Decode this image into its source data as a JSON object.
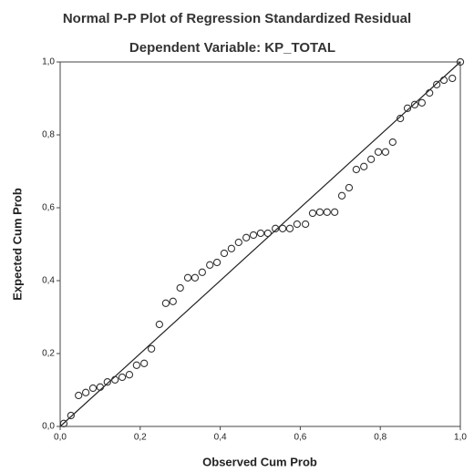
{
  "chart_data": {
    "type": "scatter",
    "title": "Normal P-P Plot of Regression Standardized Residual",
    "subtitle": "Dependent Variable: KP_TOTAL",
    "x_label": "Observed Cum Prob",
    "y_label": "Expected Cum Prob",
    "xlim": [
      0,
      1
    ],
    "ylim": [
      0,
      1
    ],
    "xticks": [
      {
        "value": 0,
        "label": "0,0"
      },
      {
        "value": 0.2,
        "label": "0,2"
      },
      {
        "value": 0.4,
        "label": "0,4"
      },
      {
        "value": 0.6,
        "label": "0,6"
      },
      {
        "value": 0.8,
        "label": "0,8"
      },
      {
        "value": 1,
        "label": "1,0"
      }
    ],
    "yticks": [
      {
        "value": 0,
        "label": "0,0"
      },
      {
        "value": 0.2,
        "label": "0,2"
      },
      {
        "value": 0.4,
        "label": "0,4"
      },
      {
        "value": 0.6,
        "label": "0,6"
      },
      {
        "value": 0.8,
        "label": "0,8"
      },
      {
        "value": 1,
        "label": "1,0"
      }
    ],
    "reference_line": true,
    "color": "#333333",
    "x": [
      0.009,
      0.027,
      0.046,
      0.064,
      0.082,
      0.1,
      0.118,
      0.137,
      0.155,
      0.173,
      0.191,
      0.21,
      0.228,
      0.248,
      0.264,
      0.282,
      0.3,
      0.319,
      0.337,
      0.355,
      0.374,
      0.392,
      0.41,
      0.428,
      0.446,
      0.465,
      0.483,
      0.501,
      0.519,
      0.538,
      0.556,
      0.574,
      0.592,
      0.613,
      0.631,
      0.649,
      0.667,
      0.686,
      0.704,
      0.722,
      0.74,
      0.759,
      0.777,
      0.795,
      0.813,
      0.831,
      0.85,
      0.868,
      0.886,
      0.904,
      0.923,
      0.941,
      0.959,
      0.98,
      1.0
    ],
    "values": [
      0.008,
      0.03,
      0.085,
      0.093,
      0.105,
      0.108,
      0.122,
      0.128,
      0.135,
      0.142,
      0.168,
      0.173,
      0.213,
      0.28,
      0.338,
      0.343,
      0.38,
      0.408,
      0.408,
      0.423,
      0.443,
      0.45,
      0.475,
      0.488,
      0.505,
      0.518,
      0.525,
      0.53,
      0.53,
      0.543,
      0.543,
      0.543,
      0.555,
      0.555,
      0.585,
      0.588,
      0.588,
      0.588,
      0.633,
      0.655,
      0.705,
      0.713,
      0.733,
      0.753,
      0.753,
      0.78,
      0.845,
      0.873,
      0.883,
      0.888,
      0.915,
      0.938,
      0.95,
      0.955,
      1.0
    ]
  }
}
